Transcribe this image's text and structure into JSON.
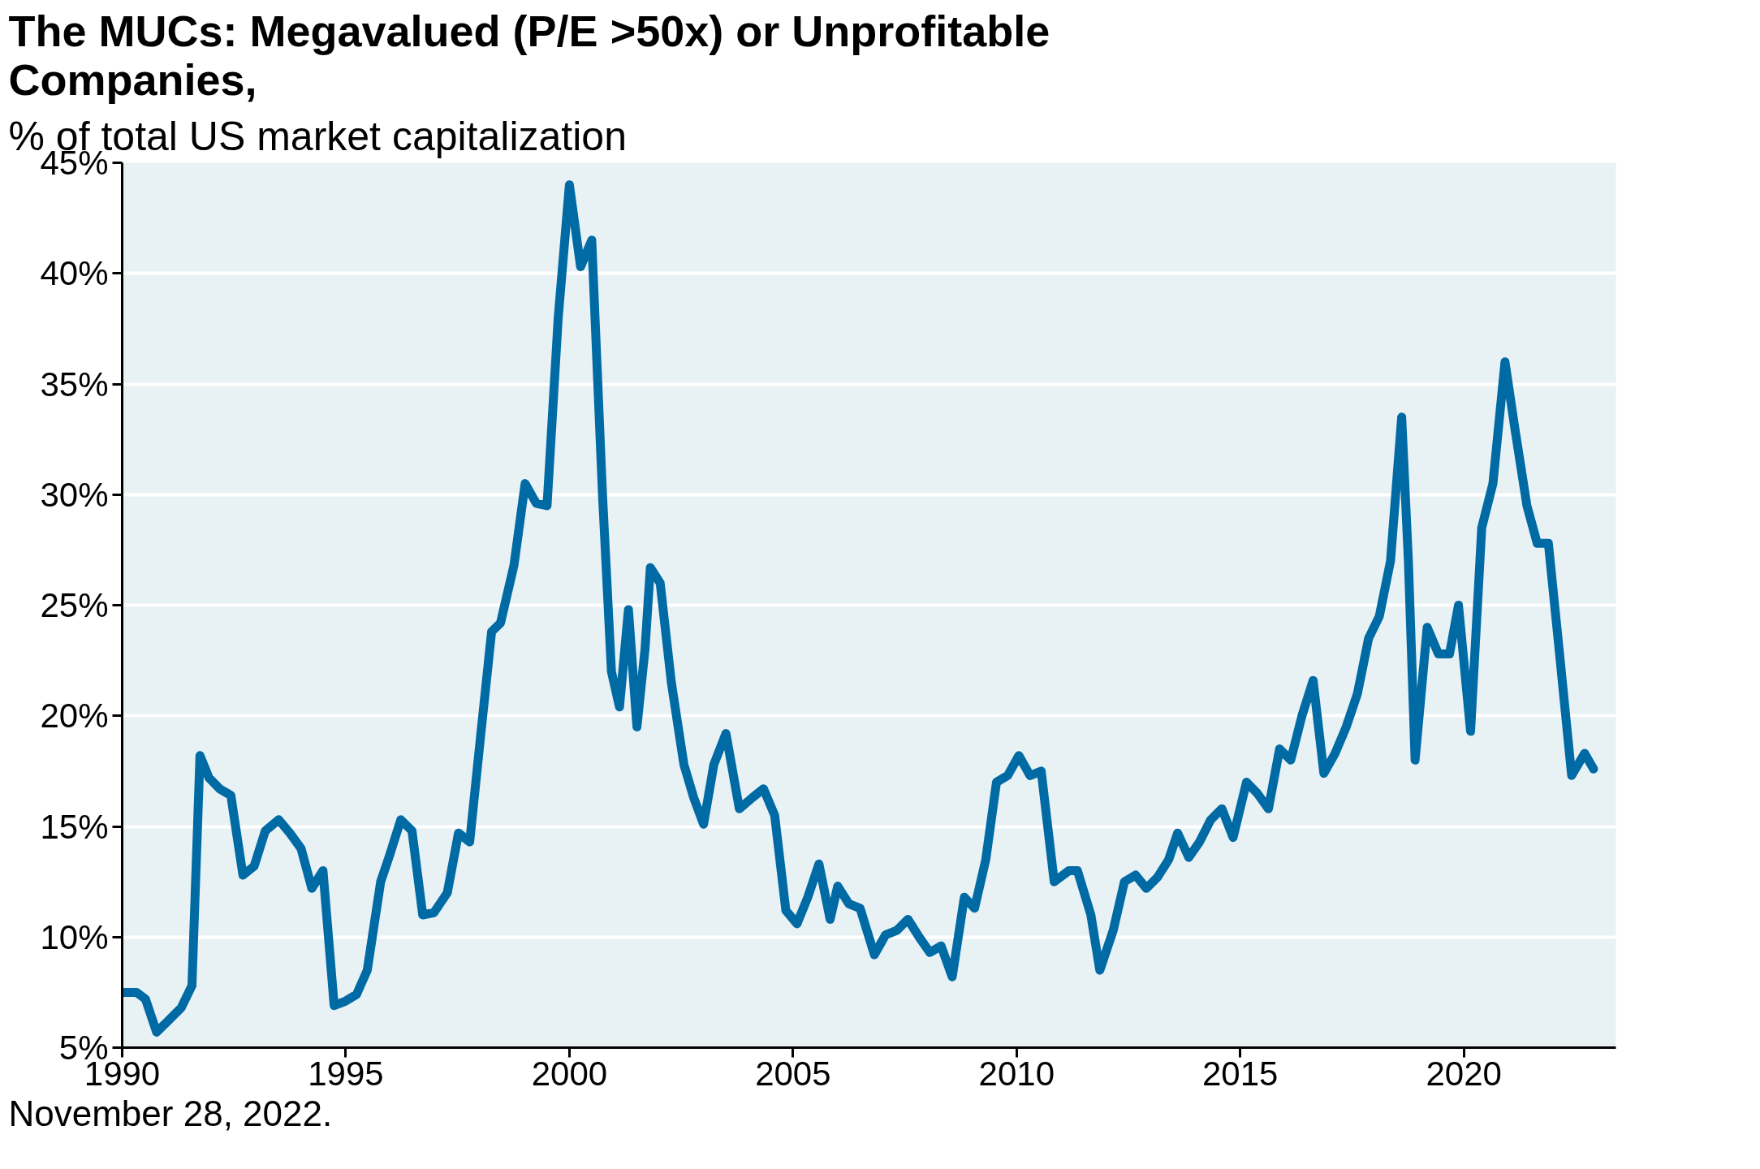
{
  "chart_data": {
    "type": "line",
    "title": "The MUCs: Megavalued (P/E >50x) or Unprofitable Companies,",
    "subtitle": "% of total US market capitalization",
    "annotations": [
      "November 28, 2022."
    ],
    "x": [
      1990.0,
      1990.32,
      1990.52,
      1990.77,
      1991.02,
      1991.32,
      1991.56,
      1991.74,
      1991.94,
      1992.18,
      1992.43,
      1992.7,
      1992.95,
      1993.2,
      1993.5,
      1993.75,
      1994.0,
      1994.24,
      1994.49,
      1994.74,
      1994.99,
      1995.24,
      1995.48,
      1995.78,
      1995.98,
      1996.23,
      1996.48,
      1996.72,
      1996.97,
      1997.27,
      1997.52,
      1997.77,
      1998.01,
      1998.26,
      1998.46,
      1998.76,
      1999.01,
      1999.26,
      1999.5,
      1999.75,
      2000.0,
      2000.25,
      2000.5,
      2000.74,
      2000.94,
      2001.12,
      2001.32,
      2001.51,
      2001.69,
      2001.81,
      2002.03,
      2002.28,
      2002.56,
      2002.78,
      2003.0,
      2003.23,
      2003.5,
      2003.8,
      2004.09,
      2004.34,
      2004.59,
      2004.84,
      2005.09,
      2005.33,
      2005.58,
      2005.83,
      2006.0,
      2006.25,
      2006.5,
      2006.82,
      2007.07,
      2007.32,
      2007.57,
      2007.82,
      2008.06,
      2008.31,
      2008.56,
      2008.83,
      2009.06,
      2009.31,
      2009.55,
      2009.8,
      2010.05,
      2010.3,
      2010.55,
      2010.84,
      2011.17,
      2011.36,
      2011.66,
      2011.86,
      2012.16,
      2012.41,
      2012.66,
      2012.9,
      2013.15,
      2013.4,
      2013.6,
      2013.85,
      2014.09,
      2014.34,
      2014.59,
      2014.84,
      2015.14,
      2015.38,
      2015.63,
      2015.88,
      2016.13,
      2016.38,
      2016.63,
      2016.87,
      2017.12,
      2017.37,
      2017.62,
      2017.87,
      2018.11,
      2018.36,
      2018.61,
      2018.76,
      2018.91,
      2019.18,
      2019.43,
      2019.68,
      2019.88,
      2020.15,
      2020.4,
      2020.65,
      2020.92,
      2021.14,
      2021.41,
      2021.64,
      2021.89,
      2022.13,
      2022.41,
      2022.7,
      2022.9
    ],
    "series": [
      {
        "color": "#006aa5",
        "values": [
          7.5,
          7.5,
          7.2,
          5.7,
          6.2,
          6.8,
          7.8,
          18.2,
          17.2,
          16.7,
          16.4,
          12.8,
          13.2,
          14.8,
          15.3,
          14.7,
          14.0,
          12.2,
          13.0,
          6.9,
          7.1,
          7.4,
          8.5,
          12.5,
          13.7,
          15.3,
          14.8,
          11.0,
          11.1,
          12.0,
          14.7,
          14.3,
          19.0,
          23.8,
          24.2,
          26.8,
          30.5,
          29.6,
          29.5,
          38.0,
          44.0,
          40.3,
          41.5,
          30.0,
          22.0,
          20.4,
          24.8,
          19.5,
          23.0,
          26.7,
          26.0,
          21.5,
          17.8,
          16.3,
          15.1,
          17.8,
          19.2,
          15.8,
          16.3,
          16.7,
          15.5,
          11.2,
          10.6,
          11.8,
          13.3,
          10.8,
          12.3,
          11.5,
          11.3,
          9.2,
          10.1,
          10.3,
          10.8,
          10.0,
          9.3,
          9.6,
          8.2,
          11.8,
          11.3,
          13.5,
          17.0,
          17.3,
          18.2,
          17.3,
          17.5,
          12.5,
          13.0,
          13.0,
          11.0,
          8.5,
          10.3,
          12.5,
          12.8,
          12.2,
          12.7,
          13.5,
          14.7,
          13.6,
          14.3,
          15.3,
          15.8,
          14.5,
          17.0,
          16.5,
          15.8,
          18.5,
          18.0,
          20.0,
          21.6,
          17.4,
          18.3,
          19.5,
          21.0,
          23.5,
          24.5,
          27.0,
          33.5,
          27.0,
          18.0,
          24.0,
          22.8,
          22.8,
          25.0,
          19.3,
          28.5,
          30.5,
          36.0,
          33.0,
          29.5,
          27.8,
          27.8,
          23.0,
          17.3,
          18.3,
          17.6
        ]
      }
    ],
    "xlim": [
      1990,
      2023.4
    ],
    "ylim": [
      5,
      45
    ],
    "xticks": [
      1990,
      1995,
      2000,
      2005,
      2010,
      2015,
      2020
    ],
    "yticks": [
      {
        "value": 5,
        "label": "5%"
      },
      {
        "value": 10,
        "label": "10%"
      },
      {
        "value": 15,
        "label": "15%"
      },
      {
        "value": 20,
        "label": "20%"
      },
      {
        "value": 25,
        "label": "25%"
      },
      {
        "value": 30,
        "label": "30%"
      },
      {
        "value": 35,
        "label": "35%"
      },
      {
        "value": 40,
        "label": "40%"
      },
      {
        "value": 45,
        "label": "45%"
      }
    ],
    "grid": "y",
    "line_style": "solid"
  }
}
